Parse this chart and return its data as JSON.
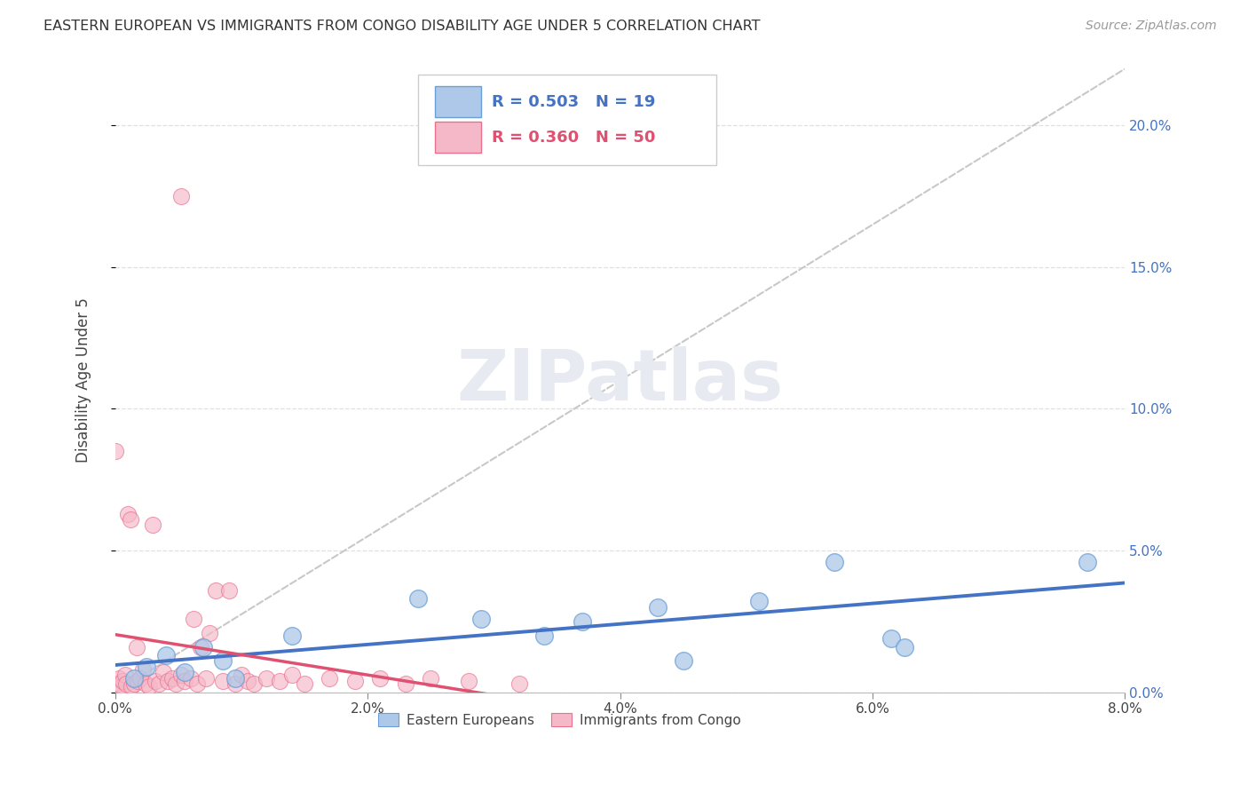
{
  "title": "EASTERN EUROPEAN VS IMMIGRANTS FROM CONGO DISABILITY AGE UNDER 5 CORRELATION CHART",
  "source": "Source: ZipAtlas.com",
  "ylabel": "Disability Age Under 5",
  "xlim": [
    0.0,
    8.0
  ],
  "ylim": [
    0.0,
    22.0
  ],
  "yticks": [
    0.0,
    5.0,
    10.0,
    15.0,
    20.0
  ],
  "xticks": [
    0.0,
    2.0,
    4.0,
    6.0,
    8.0
  ],
  "blue_R": "0.503",
  "blue_N": "19",
  "pink_R": "0.360",
  "pink_N": "50",
  "blue_color": "#adc8e8",
  "pink_color": "#f5b8c8",
  "blue_edge_color": "#6a9fd8",
  "pink_edge_color": "#e8728e",
  "blue_line_color": "#4472c4",
  "pink_line_color": "#e05070",
  "ref_line_color": "#c8c8c8",
  "legend_blue_label": "Eastern Europeans",
  "legend_pink_label": "Immigrants from Congo",
  "blue_label_color": "#4472c4",
  "pink_label_color": "#e05070",
  "right_axis_color": "#4472c4",
  "watermark_color": "#e8eaf2",
  "background_color": "#ffffff",
  "grid_color": "#e0e0e0",
  "blue_points_x": [
    0.15,
    0.25,
    0.4,
    0.55,
    0.7,
    0.85,
    0.95,
    1.4,
    2.4,
    2.9,
    3.4,
    3.7,
    4.3,
    4.5,
    5.1,
    5.7,
    6.15,
    6.25,
    7.7
  ],
  "blue_points_y": [
    0.5,
    0.9,
    1.3,
    0.7,
    1.6,
    1.1,
    0.5,
    2.0,
    3.3,
    2.6,
    2.0,
    2.5,
    3.0,
    1.1,
    3.2,
    4.6,
    1.9,
    1.6,
    4.6
  ],
  "pink_points_x": [
    0.0,
    0.02,
    0.03,
    0.05,
    0.06,
    0.08,
    0.09,
    0.1,
    0.12,
    0.13,
    0.15,
    0.17,
    0.18,
    0.2,
    0.22,
    0.24,
    0.27,
    0.3,
    0.32,
    0.35,
    0.38,
    0.42,
    0.45,
    0.48,
    0.52,
    0.55,
    0.6,
    0.62,
    0.65,
    0.68,
    0.72,
    0.75,
    0.8,
    0.85,
    0.9,
    0.95,
    1.0,
    1.05,
    1.1,
    1.2,
    1.3,
    1.4,
    1.5,
    1.7,
    1.9,
    2.1,
    2.3,
    2.5,
    2.8,
    3.2
  ],
  "pink_points_y": [
    8.5,
    0.3,
    0.5,
    0.2,
    0.4,
    0.6,
    0.3,
    6.3,
    6.1,
    0.2,
    0.3,
    1.6,
    0.4,
    0.5,
    0.8,
    0.3,
    0.2,
    5.9,
    0.4,
    0.3,
    0.7,
    0.4,
    0.5,
    0.3,
    0.6,
    0.4,
    0.5,
    2.6,
    0.3,
    1.6,
    0.5,
    2.1,
    3.6,
    0.4,
    3.6,
    0.3,
    0.6,
    0.4,
    0.3,
    0.5,
    0.4,
    0.6,
    0.3,
    0.5,
    0.4,
    0.5,
    0.3,
    0.5,
    0.4,
    0.3
  ],
  "pink_outlier_x": 0.52,
  "pink_outlier_y": 17.5
}
